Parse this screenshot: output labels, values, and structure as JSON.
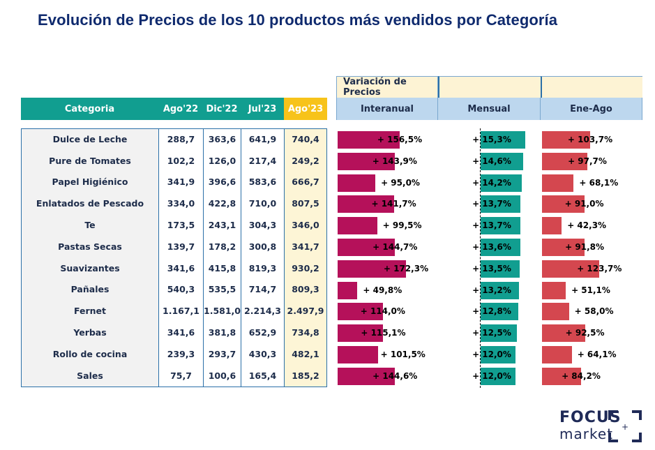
{
  "title": "Evolución de Precios de los 10 productos más vendidos por Categoría",
  "table": {
    "headers": [
      "Categoria",
      "Ago'22",
      "Dic'22",
      "Jul'23",
      "Ago'23"
    ],
    "rows": [
      [
        "Dulce de Leche",
        "288,7",
        "363,6",
        "641,9",
        "740,4"
      ],
      [
        "Pure de Tomates",
        "102,2",
        "126,0",
        "217,4",
        "249,2"
      ],
      [
        "Papel Higiénico",
        "341,9",
        "396,6",
        "583,6",
        "666,7"
      ],
      [
        "Enlatados de Pescado",
        "334,0",
        "422,8",
        "710,0",
        "807,5"
      ],
      [
        "Te",
        "173,5",
        "243,1",
        "304,3",
        "346,0"
      ],
      [
        "Pastas Secas",
        "139,7",
        "178,2",
        "300,8",
        "341,7"
      ],
      [
        "Suavizantes",
        "341,6",
        "415,8",
        "819,3",
        "930,2"
      ],
      [
        "Pañales",
        "540,3",
        "535,5",
        "714,7",
        "809,3"
      ],
      [
        "Fernet",
        "1.167,1",
        "1.581,0",
        "2.214,3",
        "2.497,9"
      ],
      [
        "Yerbas",
        "341,6",
        "381,8",
        "652,9",
        "734,8"
      ],
      [
        "Rollo de cocina",
        "239,3",
        "293,7",
        "430,3",
        "482,1"
      ],
      [
        "Sales",
        "75,7",
        "100,6",
        "165,4",
        "185,2"
      ]
    ]
  },
  "variation": {
    "header": "Variación de Precios",
    "columns": [
      "Interanual",
      "Mensual",
      "Ene-Ago"
    ]
  },
  "colors": {
    "teal": "#119e90",
    "yellow": "#f7c31a",
    "interanual": "#b5115a",
    "mensual": "#119e90",
    "eneago": "#d4474f",
    "header_blue": "#bdd7ee",
    "header_cream": "#fdf3d4"
  },
  "chart_data": [
    {
      "type": "bar",
      "title": "Interanual",
      "categories": [
        "Dulce de Leche",
        "Pure de Tomates",
        "Papel Higiénico",
        "Enlatados de Pescado",
        "Te",
        "Pastas Secas",
        "Suavizantes",
        "Pañales",
        "Fernet",
        "Yerbas",
        "Rollo de cocina",
        "Sales"
      ],
      "values": [
        156.5,
        143.9,
        95.0,
        141.7,
        99.5,
        144.7,
        172.3,
        49.8,
        114.0,
        115.1,
        101.5,
        144.6
      ],
      "labels": [
        "+ 156,5%",
        "+ 143,9%",
        "+ 95,0%",
        "+ 141,7%",
        "+ 99,5%",
        "+ 144,7%",
        "+ 172,3%",
        "+ 49,8%",
        "+ 114,0%",
        "+ 115,1%",
        "+ 101,5%",
        "+ 144,6%"
      ]
    },
    {
      "type": "bar",
      "title": "Mensual",
      "categories": [
        "Dulce de Leche",
        "Pure de Tomates",
        "Papel Higiénico",
        "Enlatados de Pescado",
        "Te",
        "Pastas Secas",
        "Suavizantes",
        "Pañales",
        "Fernet",
        "Yerbas",
        "Rollo de cocina",
        "Sales"
      ],
      "values": [
        15.3,
        14.6,
        14.2,
        13.7,
        13.7,
        13.6,
        13.5,
        13.2,
        12.8,
        12.5,
        12.0,
        12.0
      ],
      "labels": [
        "+ 15,3%",
        "+ 14,6%",
        "+ 14,2%",
        "+ 13,7%",
        "+ 13,7%",
        "+ 13,6%",
        "+ 13,5%",
        "+ 13,2%",
        "+ 12,8%",
        "+ 12,5%",
        "+ 12,0%",
        "+ 12,0%"
      ]
    },
    {
      "type": "bar",
      "title": "Ene-Ago",
      "categories": [
        "Dulce de Leche",
        "Pure de Tomates",
        "Papel Higiénico",
        "Enlatados de Pescado",
        "Te",
        "Pastas Secas",
        "Suavizantes",
        "Pañales",
        "Fernet",
        "Yerbas",
        "Rollo de cocina",
        "Sales"
      ],
      "values": [
        103.7,
        97.7,
        68.1,
        91.0,
        42.3,
        91.8,
        123.7,
        51.1,
        58.0,
        92.5,
        64.1,
        84.2
      ],
      "labels": [
        "+ 103,7%",
        "+ 97,7%",
        "+ 68,1%",
        "+ 91,0%",
        "+ 42,3%",
        "+ 91,8%",
        "+ 123,7%",
        "+ 51,1%",
        "+ 58,0%",
        "+ 92,5%",
        "+ 64,1%",
        "+ 84,2%"
      ]
    }
  ],
  "logo": {
    "line1": "FOCUS",
    "line2": "market"
  }
}
